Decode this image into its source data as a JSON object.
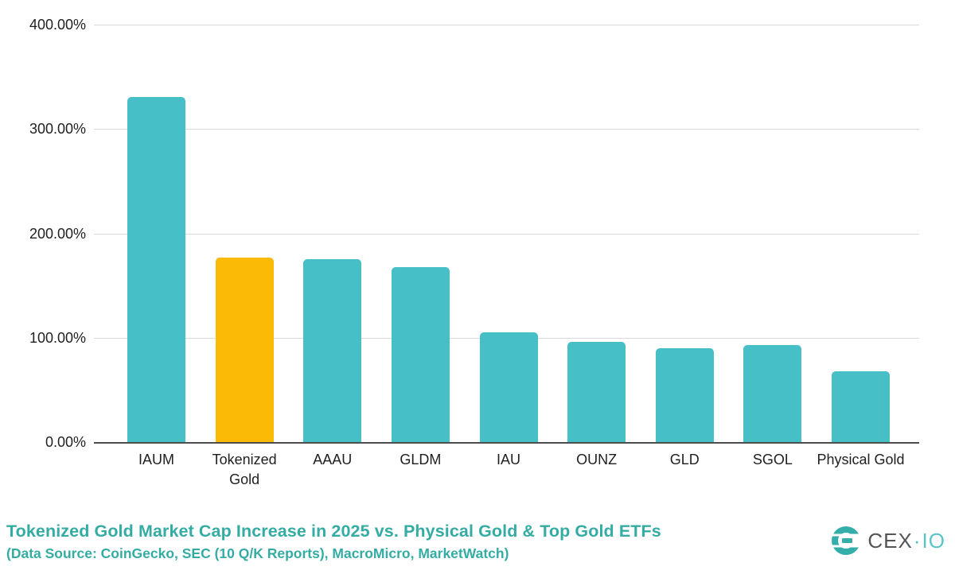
{
  "chart_data": {
    "type": "bar",
    "title": "Tokenized Gold Market Cap Increase in 2025 vs. Physical Gold & Top Gold ETFs",
    "subtitle": "(Data Source: CoinGecko, SEC (10 Q/K Reports), MacroMicro, MarketWatch)",
    "categories": [
      "IAUM",
      "Tokenized Gold",
      "AAAU",
      "GLDM",
      "IAU",
      "OUNZ",
      "GLD",
      "SGOL",
      "Physical Gold"
    ],
    "values": [
      331,
      177,
      175,
      168,
      105,
      96,
      90,
      93,
      68
    ],
    "unit": "%",
    "xlabel": "",
    "ylabel": "",
    "ylim": [
      0,
      400
    ],
    "y_ticks": [
      "400.00%",
      "300.00%",
      "200.00%",
      "100.00%",
      "0.00%"
    ],
    "grid": true,
    "legend": "none",
    "highlight_category": "Tokenized Gold",
    "colors": {
      "bar": "#47bfc6",
      "highlight": "#fbba05",
      "title": "#34aca4",
      "gridline": "#d9d9d9",
      "axis_line": "#4d4d4d",
      "tick_label": "#212121"
    }
  },
  "branding": {
    "logo_text_primary": "CEX",
    "logo_separator": "·",
    "logo_text_secondary": "IO",
    "logo_icon": "cexio-mark-icon",
    "logo_icon_color": "#35aea9"
  }
}
